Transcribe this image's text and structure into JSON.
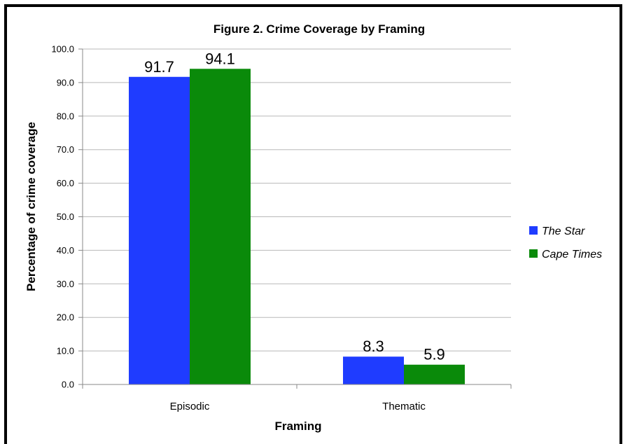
{
  "chart_data": {
    "type": "bar",
    "title": "Figure 2. Crime Coverage by Framing",
    "xlabel": "Framing",
    "ylabel": "Percentage of crime coverage",
    "categories": [
      "Episodic",
      "Thematic"
    ],
    "series": [
      {
        "name": "The Star",
        "color": "#1f3cff",
        "values": [
          91.7,
          8.3
        ],
        "labels": [
          "91.7",
          "8.3"
        ]
      },
      {
        "name": "Cape Times",
        "color": "#0a8a0a",
        "values": [
          94.1,
          5.9
        ],
        "labels": [
          "94.1",
          "5.9"
        ]
      }
    ],
    "ylim": [
      0,
      100
    ],
    "yticks": [
      0,
      10,
      20,
      30,
      40,
      50,
      60,
      70,
      80,
      90,
      100
    ],
    "ytick_labels": [
      "0.0",
      "10.0",
      "20.0",
      "30.0",
      "40.0",
      "50.0",
      "60.0",
      "70.0",
      "80.0",
      "90.0",
      "100.0"
    ],
    "grid": true,
    "legend_position": "right"
  }
}
